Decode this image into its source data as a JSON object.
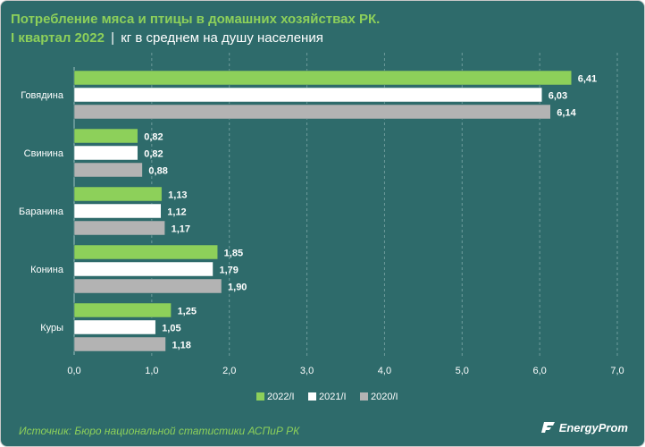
{
  "header": {
    "title_line1": "Потребление мяса и птицы в домашних хозяйствах РК.",
    "title_line2": "I квартал 2022",
    "separator": "|",
    "subtitle": "кг в среднем на душу населения"
  },
  "footer": {
    "source": "Источник: Бюро национальной статистики АСПиР РК",
    "logo_text": "EnergyProm"
  },
  "colors": {
    "frame_bg": "#2e6b6b",
    "accent": "#8dd05a",
    "series_2022": "#8dd05a",
    "series_2021": "#ffffff",
    "series_2020": "#b3b3b3"
  },
  "chart_data": {
    "type": "bar",
    "orientation": "horizontal",
    "categories": [
      "Говядина",
      "Свинина",
      "Баранина",
      "Конина",
      "Куры"
    ],
    "series": [
      {
        "name": "2022/I",
        "color": "#8dd05a",
        "values": [
          6.41,
          0.82,
          1.13,
          1.85,
          1.25
        ],
        "labels": [
          "6,41",
          "0,82",
          "1,13",
          "1,85",
          "1,25"
        ]
      },
      {
        "name": "2021/I",
        "color": "#ffffff",
        "values": [
          6.03,
          0.82,
          1.12,
          1.79,
          1.05
        ],
        "labels": [
          "6,03",
          "0,82",
          "1,12",
          "1,79",
          "1,05"
        ]
      },
      {
        "name": "2020/I",
        "color": "#b3b3b3",
        "values": [
          6.14,
          0.88,
          1.17,
          1.9,
          1.18
        ],
        "labels": [
          "6,14",
          "0,88",
          "1,17",
          "1,90",
          "1,18"
        ]
      }
    ],
    "xlim": [
      0,
      7
    ],
    "xticks": [
      0,
      1,
      2,
      3,
      4,
      5,
      6,
      7
    ],
    "xtick_labels": [
      "0,0",
      "1,0",
      "2,0",
      "3,0",
      "4,0",
      "5,0",
      "6,0",
      "7,0"
    ],
    "grid": "vertical dashed",
    "legend_position": "bottom-center"
  }
}
